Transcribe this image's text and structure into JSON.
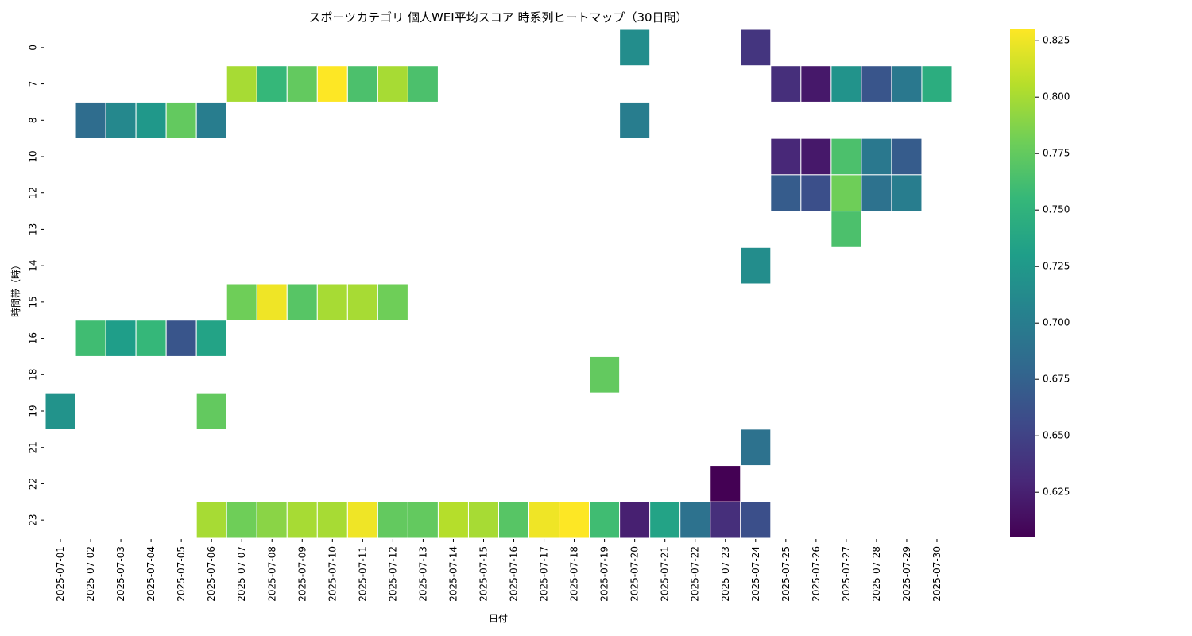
{
  "chart_data": {
    "type": "heatmap",
    "title": "スポーツカテゴリ 個人WEI平均スコア 時系列ヒートマップ（30日間）",
    "xlabel": "日付",
    "ylabel": "時間帯（時）",
    "colormap": "viridis",
    "color_range": [
      0.605,
      0.83
    ],
    "colorbar_ticks": [
      "0.625",
      "0.650",
      "0.675",
      "0.700",
      "0.725",
      "0.750",
      "0.775",
      "0.800",
      "0.825"
    ],
    "x_categories": [
      "2025-07-01",
      "2025-07-02",
      "2025-07-03",
      "2025-07-04",
      "2025-07-05",
      "2025-07-06",
      "2025-07-07",
      "2025-07-08",
      "2025-07-09",
      "2025-07-10",
      "2025-07-11",
      "2025-07-12",
      "2025-07-13",
      "2025-07-14",
      "2025-07-15",
      "2025-07-16",
      "2025-07-17",
      "2025-07-18",
      "2025-07-19",
      "2025-07-20",
      "2025-07-21",
      "2025-07-22",
      "2025-07-23",
      "2025-07-24",
      "2025-07-25",
      "2025-07-26",
      "2025-07-27",
      "2025-07-28",
      "2025-07-29",
      "2025-07-30"
    ],
    "y_categories": [
      "0",
      "7",
      "8",
      "10",
      "12",
      "13",
      "14",
      "15",
      "16",
      "18",
      "19",
      "21",
      "22",
      "23"
    ],
    "values": [
      [
        null,
        null,
        null,
        null,
        null,
        null,
        null,
        null,
        null,
        null,
        null,
        null,
        null,
        null,
        null,
        null,
        null,
        null,
        null,
        0.715,
        null,
        null,
        null,
        0.64,
        null,
        null,
        null,
        null,
        null,
        null
      ],
      [
        null,
        null,
        null,
        null,
        null,
        null,
        0.8,
        0.755,
        0.775,
        0.83,
        0.765,
        0.8,
        0.765,
        null,
        null,
        null,
        null,
        null,
        null,
        null,
        null,
        null,
        null,
        null,
        0.635,
        0.62,
        0.72,
        0.665,
        0.695,
        0.745
      ],
      [
        null,
        0.685,
        0.71,
        0.725,
        0.775,
        0.7,
        null,
        null,
        null,
        null,
        null,
        null,
        null,
        null,
        null,
        null,
        null,
        null,
        null,
        0.7,
        null,
        null,
        null,
        null,
        null,
        null,
        null,
        null,
        null,
        null
      ],
      [
        null,
        null,
        null,
        null,
        null,
        null,
        null,
        null,
        null,
        null,
        null,
        null,
        null,
        null,
        null,
        null,
        null,
        null,
        null,
        null,
        null,
        null,
        null,
        null,
        0.63,
        0.62,
        0.765,
        0.695,
        0.67,
        null
      ],
      [
        null,
        null,
        null,
        null,
        null,
        null,
        null,
        null,
        null,
        null,
        null,
        null,
        null,
        null,
        null,
        null,
        null,
        null,
        null,
        null,
        null,
        null,
        null,
        null,
        0.67,
        0.66,
        0.78,
        0.69,
        0.7,
        null
      ],
      [
        null,
        null,
        null,
        null,
        null,
        null,
        null,
        null,
        null,
        null,
        null,
        null,
        null,
        null,
        null,
        null,
        null,
        null,
        null,
        null,
        null,
        null,
        null,
        null,
        null,
        null,
        0.765,
        null,
        null,
        null
      ],
      [
        null,
        null,
        null,
        null,
        null,
        null,
        null,
        null,
        null,
        null,
        null,
        null,
        null,
        null,
        null,
        null,
        null,
        null,
        null,
        null,
        null,
        null,
        null,
        0.715,
        null,
        null,
        null,
        null,
        null,
        null
      ],
      [
        null,
        null,
        null,
        null,
        null,
        null,
        0.78,
        0.825,
        0.77,
        0.8,
        0.8,
        0.78,
        null,
        null,
        null,
        null,
        null,
        null,
        null,
        null,
        null,
        null,
        null,
        null,
        null,
        null,
        null,
        null,
        null,
        null
      ],
      [
        null,
        0.76,
        0.73,
        0.755,
        0.665,
        0.735,
        null,
        null,
        null,
        null,
        null,
        null,
        null,
        null,
        null,
        null,
        null,
        null,
        null,
        null,
        null,
        null,
        null,
        null,
        null,
        null,
        null,
        null,
        null,
        null
      ],
      [
        null,
        null,
        null,
        null,
        null,
        null,
        null,
        null,
        null,
        null,
        null,
        null,
        null,
        null,
        null,
        null,
        null,
        null,
        0.775,
        null,
        null,
        null,
        null,
        null,
        null,
        null,
        null,
        null,
        null,
        null
      ],
      [
        0.72,
        null,
        null,
        null,
        null,
        0.775,
        null,
        null,
        null,
        null,
        null,
        null,
        null,
        null,
        null,
        null,
        null,
        null,
        null,
        null,
        null,
        null,
        null,
        null,
        null,
        null,
        null,
        null,
        null,
        null
      ],
      [
        null,
        null,
        null,
        null,
        null,
        null,
        null,
        null,
        null,
        null,
        null,
        null,
        null,
        null,
        null,
        null,
        null,
        null,
        null,
        null,
        null,
        null,
        null,
        0.69,
        null,
        null,
        null,
        null,
        null,
        null
      ],
      [
        null,
        null,
        null,
        null,
        null,
        null,
        null,
        null,
        null,
        null,
        null,
        null,
        null,
        null,
        null,
        null,
        null,
        null,
        null,
        null,
        null,
        null,
        0.605,
        null,
        null,
        null,
        null,
        null,
        null,
        null
      ],
      [
        null,
        null,
        null,
        null,
        null,
        0.8,
        0.78,
        0.79,
        0.8,
        0.8,
        0.825,
        0.775,
        0.775,
        0.805,
        0.8,
        0.77,
        0.825,
        0.83,
        0.76,
        0.625,
        0.735,
        0.69,
        0.635,
        0.66,
        null,
        null,
        null,
        null,
        null,
        null
      ]
    ]
  }
}
